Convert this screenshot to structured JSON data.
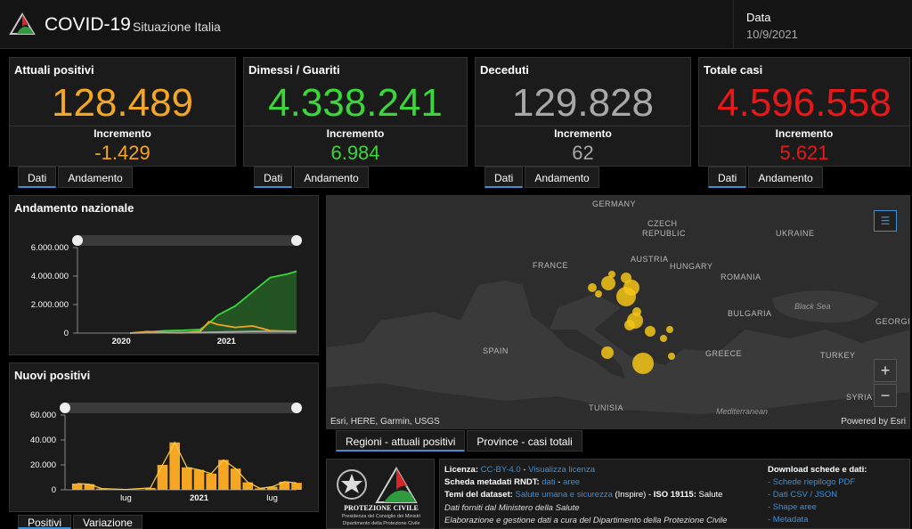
{
  "header": {
    "title": "COVID-19",
    "subtitle": "Situazione Italia",
    "date_label": "Data",
    "date_value": "10/9/2021"
  },
  "kpis": [
    {
      "label": "Attuali positivi",
      "value": "128.489",
      "inc_label": "Incremento",
      "inc": "-1.429",
      "color": "#f5a623"
    },
    {
      "label": "Dimessi / Guariti",
      "value": "4.338.241",
      "inc_label": "Incremento",
      "inc": "6.984",
      "color": "#3ad63a"
    },
    {
      "label": "Deceduti",
      "value": "129.828",
      "inc_label": "Incremento",
      "inc": "62",
      "color": "#a8a8a8"
    },
    {
      "label": "Totale casi",
      "value": "4.596.558",
      "inc_label": "Incremento",
      "inc": "5.621",
      "color": "#e81818"
    }
  ],
  "kpi_tabs": {
    "dati": "Dati",
    "andamento": "Andamento"
  },
  "charts": {
    "andamento": {
      "title": "Andamento nazionale"
    },
    "nuovi": {
      "title": "Nuovi positivi"
    }
  },
  "chart_data": [
    {
      "type": "area",
      "title": "Andamento nazionale",
      "ylim": [
        0,
        6000000
      ],
      "yticks": [
        "6.000.000",
        "4.000.000",
        "2.000.000",
        "0"
      ],
      "xticks": [
        "2020",
        "2021"
      ],
      "x": [
        "2020-02",
        "2020-04",
        "2020-06",
        "2020-08",
        "2020-10",
        "2020-11",
        "2020-12",
        "2021-02",
        "2021-04",
        "2021-06",
        "2021-08",
        "2021-09"
      ],
      "series": [
        {
          "values": [
            0,
            80000,
            160000,
            190000,
            250000,
            700000,
            1250000,
            1900000,
            2900000,
            3900000,
            4150000,
            4338241
          ],
          "color": "#3ad63a"
        },
        {
          "values": [
            0,
            105000,
            25000,
            15000,
            120000,
            800000,
            600000,
            400000,
            500000,
            170000,
            130000,
            128489
          ],
          "color": "#f5a623"
        },
        {
          "values": [
            0,
            28000,
            34000,
            35000,
            38000,
            50000,
            70000,
            95000,
            118000,
            127000,
            128500,
            129828
          ],
          "color": "#a8a8a8"
        }
      ]
    },
    {
      "type": "bar",
      "title": "Nuovi positivi",
      "ylim": [
        0,
        60000
      ],
      "yticks": [
        "60.000",
        "40.000",
        "20.000",
        "0"
      ],
      "xticks": [
        "lug",
        "2021",
        "lug"
      ],
      "x": [
        "2020-03",
        "2020-04",
        "2020-05",
        "2020-07",
        "2020-09",
        "2020-10",
        "2020-11",
        "2020-12",
        "2021-01",
        "2021-02",
        "2021-03",
        "2021-04",
        "2021-05",
        "2021-06",
        "2021-07",
        "2021-08",
        "2021-09"
      ],
      "values": [
        5000,
        4500,
        1000,
        250,
        1500,
        20000,
        38000,
        18000,
        16000,
        13000,
        24000,
        17000,
        6000,
        1200,
        2500,
        6500,
        5600
      ],
      "color": "#f5a623"
    }
  ],
  "chart_tabs": {
    "positivi": "Positivi",
    "variazione": "Variazione"
  },
  "map": {
    "labels": [
      "GERMANY",
      "CZECH",
      "REPUBLIC",
      "UKRAINE",
      "FRANCE",
      "AUSTRIA",
      "HUNGARY",
      "ROMANIA",
      "BULGARIA",
      "SPAIN",
      "GREECE",
      "TURKEY",
      "TUNISIA",
      "SYRIA",
      "GEORGI"
    ],
    "seas": [
      "Black Sea",
      "Mediterranean"
    ],
    "attribution": "Esri, HERE, Garmin, USGS",
    "powered": "Powered by Esri",
    "zoom_in": "+",
    "zoom_out": "−"
  },
  "map_tabs": {
    "regioni": "Regioni - attuali positivi",
    "province": "Province - casi totali"
  },
  "footer": {
    "logo_line1": "PROTEZIONE CIVILE",
    "logo_line2": "Presidenza del Consiglio dei Ministri",
    "logo_line3": "Dipartimento della Protezione Civile",
    "licenza_label": "Licenza:",
    "licenza_link": "CC-BY-4.0",
    "licenza_sep": " - ",
    "licenza_link2": "Visualizza licenza",
    "scheda_label": "Scheda metadati RNDT:",
    "scheda_link1": "dati",
    "scheda_sep": " - ",
    "scheda_link2": "aree",
    "temi_label": "Temi del dataset:",
    "temi_link": "Salute umana e sicurezza",
    "temi_rest": " (Inspire) - ",
    "iso_label": "ISO 19115:",
    "iso_rest": " Salute",
    "dati_forniti": "Dati forniti dal Ministero della Salute",
    "elaborazione": "Elaborazione e gestione dati a cura del Dipartimento della Protezione Civile",
    "download_title": "Download schede e dati:",
    "downloads": [
      "- Schede riepilogo PDF",
      "- Dati CSV / JSON",
      "- Shape aree",
      "- Metadata"
    ]
  }
}
